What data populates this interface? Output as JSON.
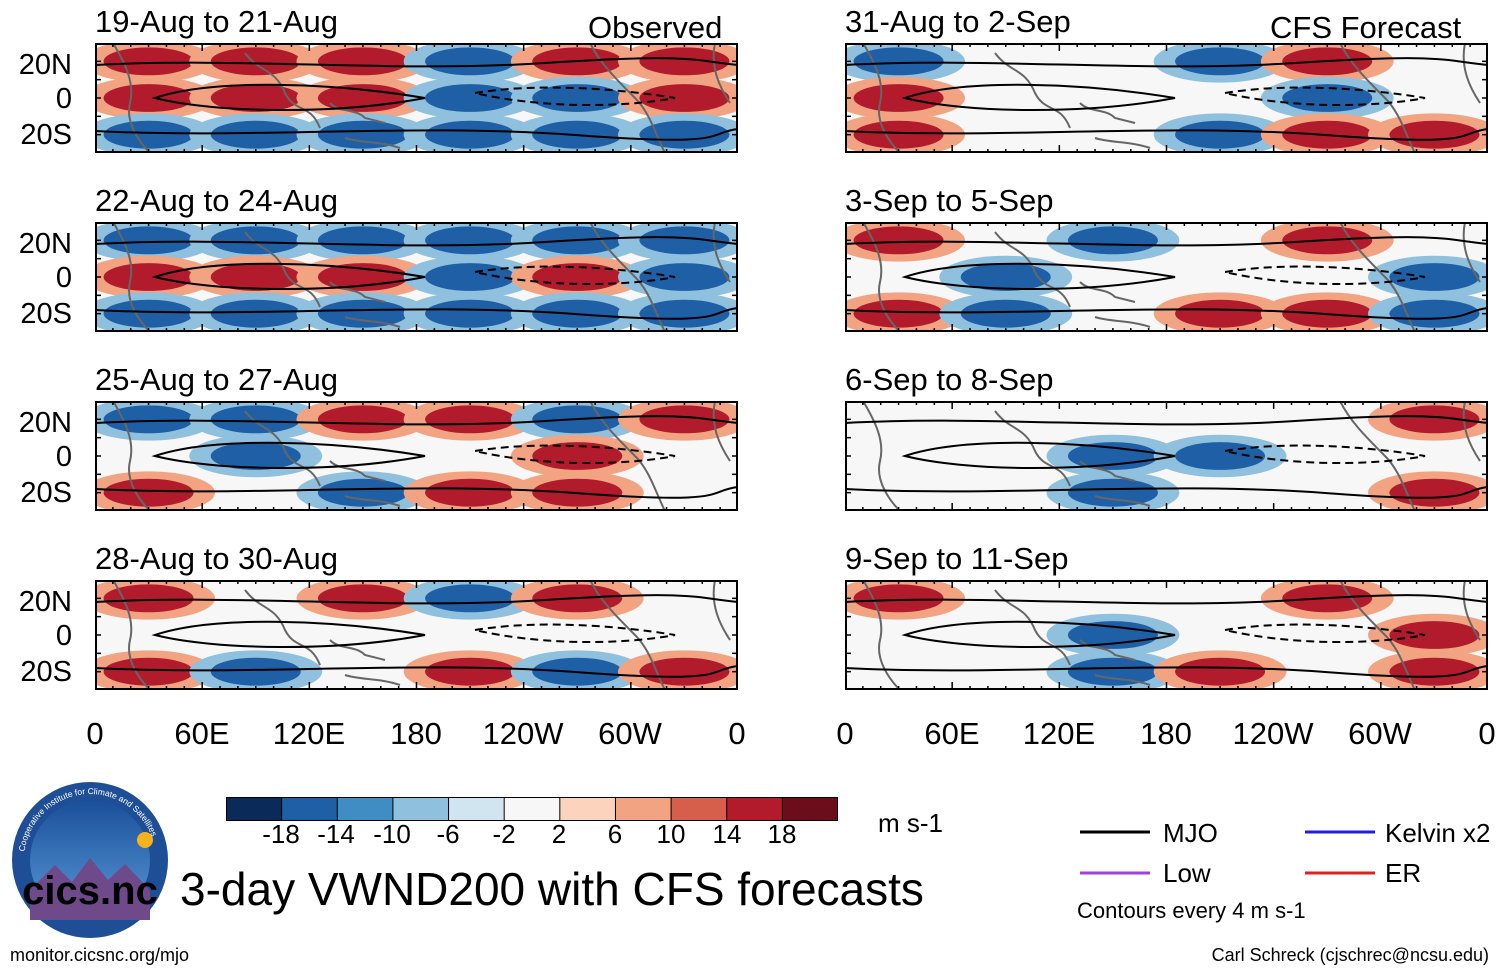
{
  "figure_title": "3-day VWND200 with CFS forecasts",
  "observed_label": "Observed",
  "forecast_label": "CFS Forecast",
  "lat_labels": [
    "20N",
    "0",
    "20S"
  ],
  "lon_labels": [
    "0",
    "60E",
    "120E",
    "180",
    "120W",
    "60W",
    "0"
  ],
  "colorbar": {
    "ticks": [
      "-18",
      "-14",
      "-10",
      "-6",
      "-2",
      "2",
      "6",
      "10",
      "14",
      "18"
    ],
    "units": "m s-1",
    "colors": [
      "#0a2a5a",
      "#1f5fa6",
      "#3f8dc2",
      "#8fc0dd",
      "#d0e5f0",
      "#f7f7f7",
      "#fcd3bd",
      "#f2a482",
      "#d65f4c",
      "#b11b2c",
      "#6b0d1a"
    ]
  },
  "legend": {
    "items": [
      {
        "label": "MJO",
        "color": "#000000"
      },
      {
        "label": "Kelvin x2",
        "color": "#1f1fe0"
      },
      {
        "label": "Low",
        "color": "#a040e0"
      },
      {
        "label": "ER",
        "color": "#e02020"
      }
    ],
    "contour_note": "Contours every 4 m s-1"
  },
  "footer": {
    "url": "monitor.cicsnc.org/mjo",
    "credit": "Carl Schreck (cjschrec@ncsu.edu)"
  },
  "logo": {
    "text": "cics.nc",
    "ring_text": "Cooperative Institute for Climate and Satellites"
  },
  "chart_data": {
    "type": "heatmap",
    "variable": "VWND200",
    "units": "m s-1",
    "contour_interval": 4,
    "xlim": [
      0,
      360
    ],
    "ylim": [
      -30,
      30
    ],
    "panels": [
      {
        "title": "19-Aug to 21-Aug",
        "source": "Observed",
        "anomaly_pattern": [
          [
            "+",
            "+",
            "+",
            "-",
            "+",
            "+"
          ],
          [
            "+",
            "+",
            "+",
            "-",
            "-",
            "+"
          ],
          [
            "-",
            "-",
            "-",
            "-",
            "-",
            "-"
          ]
        ]
      },
      {
        "title": "22-Aug to 24-Aug",
        "source": "Observed",
        "anomaly_pattern": [
          [
            "-",
            "-",
            "-",
            "-",
            "-",
            "-"
          ],
          [
            "+",
            "+",
            "+",
            "-",
            "+",
            "-"
          ],
          [
            "-",
            "-",
            "-",
            "-",
            "-",
            "-"
          ]
        ]
      },
      {
        "title": "25-Aug to 27-Aug",
        "source": "Observed",
        "anomaly_pattern": [
          [
            "-",
            "-",
            "+",
            "+",
            "-",
            "+"
          ],
          [
            "0",
            "-",
            "0",
            "0",
            "+",
            "0"
          ],
          [
            "+",
            "0",
            "-",
            "+",
            "+",
            "0"
          ]
        ]
      },
      {
        "title": "28-Aug to 30-Aug",
        "source": "Observed",
        "anomaly_pattern": [
          [
            "+",
            "0",
            "+",
            "-",
            "+",
            "0"
          ],
          [
            "0",
            "0",
            "0",
            "0",
            "0",
            "0"
          ],
          [
            "+",
            "-",
            "0",
            "+",
            "-",
            "+"
          ]
        ]
      },
      {
        "title": "31-Aug to 2-Sep",
        "source": "CFS Forecast",
        "anomaly_pattern": [
          [
            "-",
            "0",
            "0",
            "-",
            "+",
            "0"
          ],
          [
            "+",
            "0",
            "0",
            "0",
            "-",
            "0"
          ],
          [
            "+",
            "0",
            "0",
            "-",
            "+",
            "+"
          ]
        ]
      },
      {
        "title": "3-Sep to 5-Sep",
        "source": "CFS Forecast",
        "anomaly_pattern": [
          [
            "+",
            "0",
            "-",
            "0",
            "+",
            "0"
          ],
          [
            "0",
            "-",
            "0",
            "0",
            "0",
            "-"
          ],
          [
            "+",
            "-",
            "0",
            "+",
            "+",
            "-"
          ]
        ]
      },
      {
        "title": "6-Sep to 8-Sep",
        "source": "CFS Forecast",
        "anomaly_pattern": [
          [
            "0",
            "0",
            "0",
            "0",
            "0",
            "+"
          ],
          [
            "0",
            "0",
            "-",
            "-",
            "0",
            "0"
          ],
          [
            "0",
            "0",
            "-",
            "0",
            "0",
            "+"
          ]
        ]
      },
      {
        "title": "9-Sep to 11-Sep",
        "source": "CFS Forecast",
        "anomaly_pattern": [
          [
            "+",
            "0",
            "0",
            "0",
            "+",
            "0"
          ],
          [
            "0",
            "0",
            "-",
            "0",
            "0",
            "+"
          ],
          [
            "0",
            "0",
            "-",
            "+",
            "0",
            "+"
          ]
        ]
      }
    ]
  }
}
